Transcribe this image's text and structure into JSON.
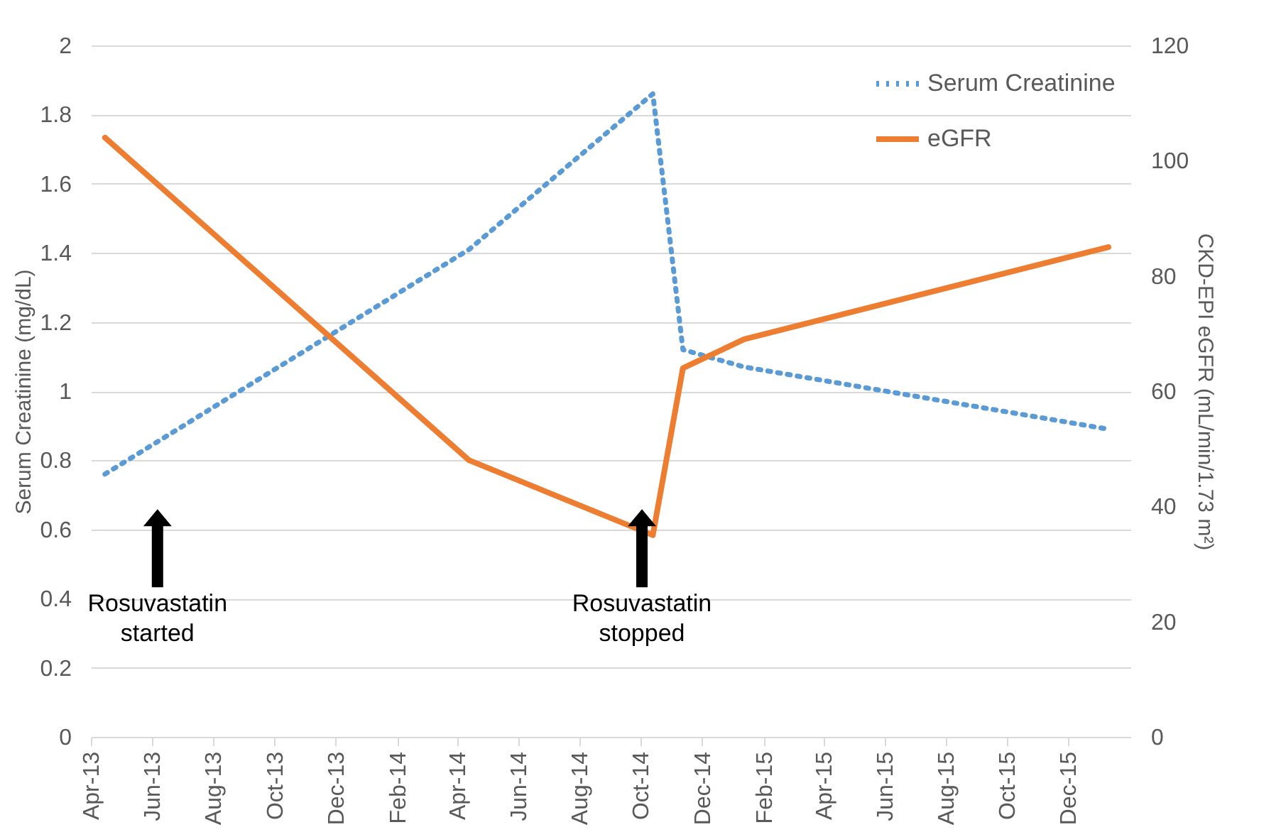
{
  "chart_data": {
    "type": "line",
    "ylabel": "Serum Creatinine (mg/dL)",
    "y2label": "CKD-EPI eGFR (mL/min/1.73 m²)",
    "series": [
      {
        "name": "Serum Creatinine",
        "color": "#5b9bd5",
        "line_style": "dotted",
        "x": [
          "2013-04-15",
          "2014-04-13",
          "2014-10-13",
          "2014-11-12",
          "2015-01-12",
          "2016-01-10"
        ],
        "values": [
          0.76,
          1.41,
          1.86,
          1.12,
          1.07,
          0.89
        ]
      },
      {
        "name": "eGFR",
        "color": "#ed7d31",
        "line_style": "solid",
        "axis": "y2",
        "x": [
          "2013-04-15",
          "2014-04-13",
          "2014-10-13",
          "2014-11-12",
          "2015-01-12",
          "2016-01-10"
        ],
        "values": [
          104,
          48,
          35,
          64,
          69,
          85
        ]
      }
    ],
    "xlim": [
      "2013-04-01",
      "2016-02-01"
    ],
    "xticks": [
      {
        "value": "2013-04-01",
        "label": "Apr-13"
      },
      {
        "value": "2013-06-01",
        "label": "Jun-13"
      },
      {
        "value": "2013-08-01",
        "label": "Aug-13"
      },
      {
        "value": "2013-10-01",
        "label": "Oct-13"
      },
      {
        "value": "2013-12-01",
        "label": "Dec-13"
      },
      {
        "value": "2014-02-01",
        "label": "Feb-14"
      },
      {
        "value": "2014-04-01",
        "label": "Apr-14"
      },
      {
        "value": "2014-06-01",
        "label": "Jun-14"
      },
      {
        "value": "2014-08-01",
        "label": "Aug-14"
      },
      {
        "value": "2014-10-01",
        "label": "Oct-14"
      },
      {
        "value": "2014-12-01",
        "label": "Dec-14"
      },
      {
        "value": "2015-02-01",
        "label": "Feb-15"
      },
      {
        "value": "2015-04-01",
        "label": "Apr-15"
      },
      {
        "value": "2015-06-01",
        "label": "Jun-15"
      },
      {
        "value": "2015-08-01",
        "label": "Aug-15"
      },
      {
        "value": "2015-10-01",
        "label": "Oct-15"
      },
      {
        "value": "2015-12-01",
        "label": "Dec-15"
      }
    ],
    "ylim": [
      0,
      2
    ],
    "yticks": [
      0,
      0.2,
      0.4,
      0.6,
      0.8,
      1,
      1.2,
      1.4,
      1.6,
      1.8,
      2
    ],
    "y2lim": [
      0,
      120
    ],
    "y2ticks": [
      0,
      20,
      40,
      60,
      80,
      100,
      120
    ],
    "grid": "y",
    "legend": "top right",
    "marker": "none",
    "annotations": [
      "Rosuvastatin started",
      "Rosuvastatin stopped"
    ]
  }
}
